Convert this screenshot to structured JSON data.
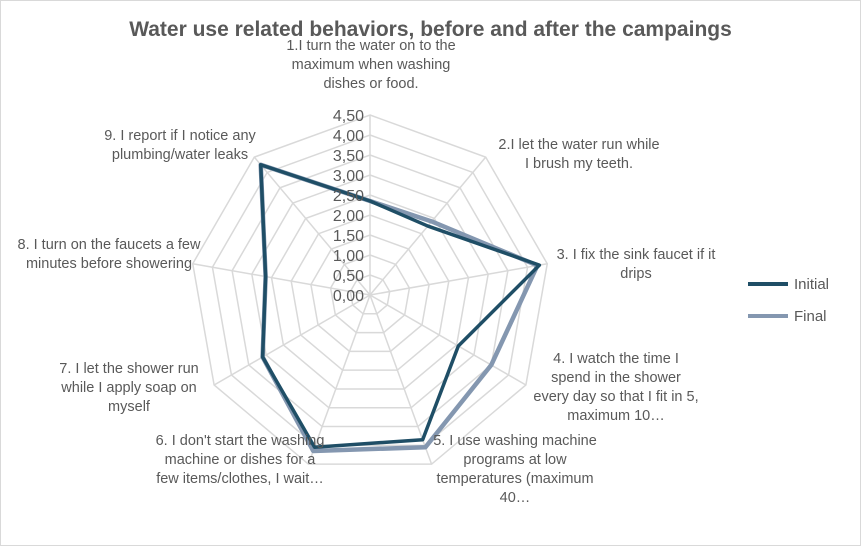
{
  "chart_data": {
    "type": "radar",
    "title": "Water use related behaviors, before and after the campaings",
    "categories": [
      "1.I turn the water on to the maximum when washing dishes or food.",
      "2.I let the water run while I brush my teeth.",
      "3. I fix the sink faucet if it drips",
      "4. I watch the time I spend in the shower every day so that I fit in 5, maximum 10…",
      "5. I use washing machine programs at low temperatures (maximum 40…",
      "6. I don't start the washing machine or dishes for a few items/clothes, I wait…",
      "7. I let the shower run while I apply soap on myself",
      "8. I turn on the faucets a few minutes before showering",
      "9. I report if I notice any plumbing/water leaks"
    ],
    "series": [
      {
        "name": "Initial",
        "color": "#1f4e66",
        "values": [
          2.35,
          2.25,
          4.3,
          2.55,
          3.85,
          4.05,
          3.1,
          2.65,
          4.25
        ]
      },
      {
        "name": "Final",
        "color": "#8497b0",
        "values": [
          2.35,
          2.4,
          4.25,
          3.5,
          4.05,
          4.15,
          3.1,
          2.65,
          4.25
        ]
      }
    ],
    "radial_ticks": [
      "0,00",
      "0,50",
      "1,00",
      "1,50",
      "2,00",
      "2,50",
      "3,00",
      "3,50",
      "4,00",
      "4,50"
    ],
    "rmax": 4.5,
    "legend": {
      "position": "right"
    },
    "grid": true
  }
}
